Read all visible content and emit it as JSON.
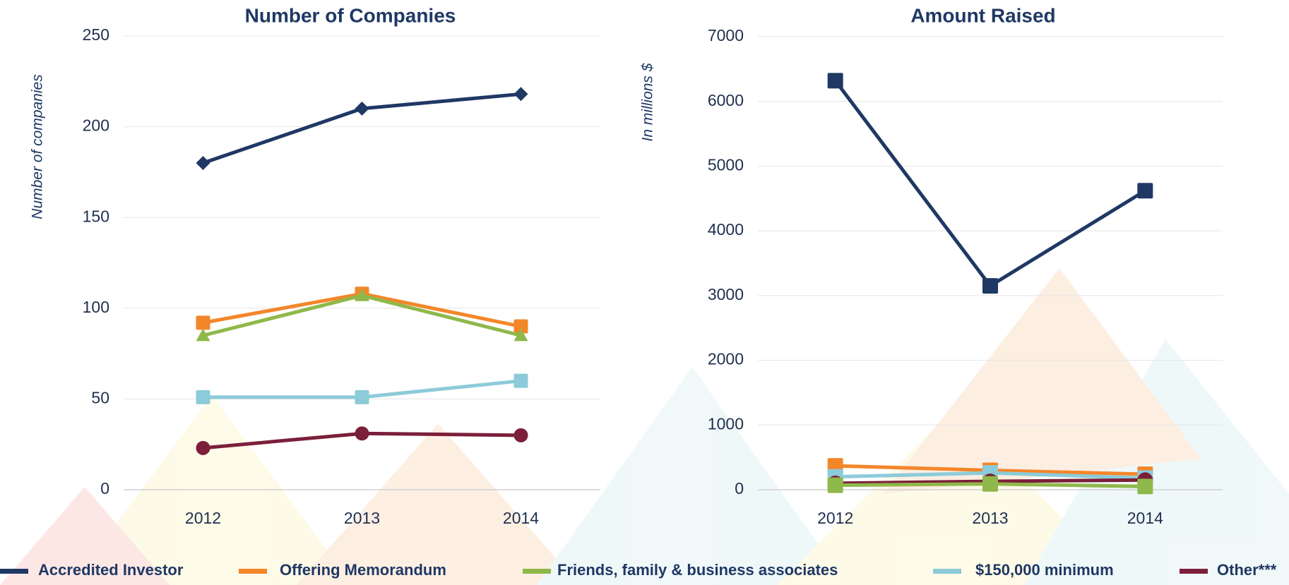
{
  "chart_data": [
    {
      "type": "line",
      "title": "Number of Companies",
      "y_label": "Number of companies",
      "categories": [
        "2012",
        "2013",
        "2014"
      ],
      "ylim": [
        0,
        250
      ],
      "yticks": [
        0,
        50,
        100,
        150,
        200,
        250
      ],
      "grid": true,
      "series": [
        {
          "name": "Accredited Investor",
          "color": "#1f3864",
          "marker": "diamond",
          "values": [
            180,
            210,
            218
          ]
        },
        {
          "name": "Offering Memorandum",
          "color": "#f4862a",
          "marker": "square",
          "values": [
            92,
            108,
            90
          ]
        },
        {
          "name": "Friends, family & business associates",
          "color": "#8fb84a",
          "marker": "triangle",
          "values": [
            85,
            107,
            85
          ]
        },
        {
          "name": "$150,000 minimum",
          "color": "#8ccbd9",
          "marker": "square",
          "values": [
            51,
            51,
            60
          ]
        },
        {
          "name": "Other***",
          "color": "#7b1f3a",
          "marker": "circle",
          "values": [
            23,
            31,
            30
          ]
        }
      ]
    },
    {
      "type": "line",
      "title": "Amount Raised",
      "y_label": "In millions $",
      "categories": [
        "2012",
        "2013",
        "2014"
      ],
      "ylim": [
        0,
        7000
      ],
      "yticks": [
        0,
        1000,
        2000,
        3000,
        4000,
        5000,
        6000,
        7000
      ],
      "grid": true,
      "series": [
        {
          "color": "#1f3864",
          "marker": "square",
          "values": [
            6320,
            3150,
            4620
          ]
        },
        {
          "color": "#f4862a",
          "marker": "square",
          "values": [
            370,
            300,
            240
          ]
        },
        {
          "color": "#8ccbd9",
          "marker": "square",
          "values": [
            200,
            260,
            180
          ]
        },
        {
          "color": "#7b1f3a",
          "marker": "circle",
          "values": [
            100,
            130,
            150
          ]
        },
        {
          "color": "#8fb84a",
          "marker": "square",
          "values": [
            70,
            90,
            50
          ]
        }
      ]
    }
  ]
}
